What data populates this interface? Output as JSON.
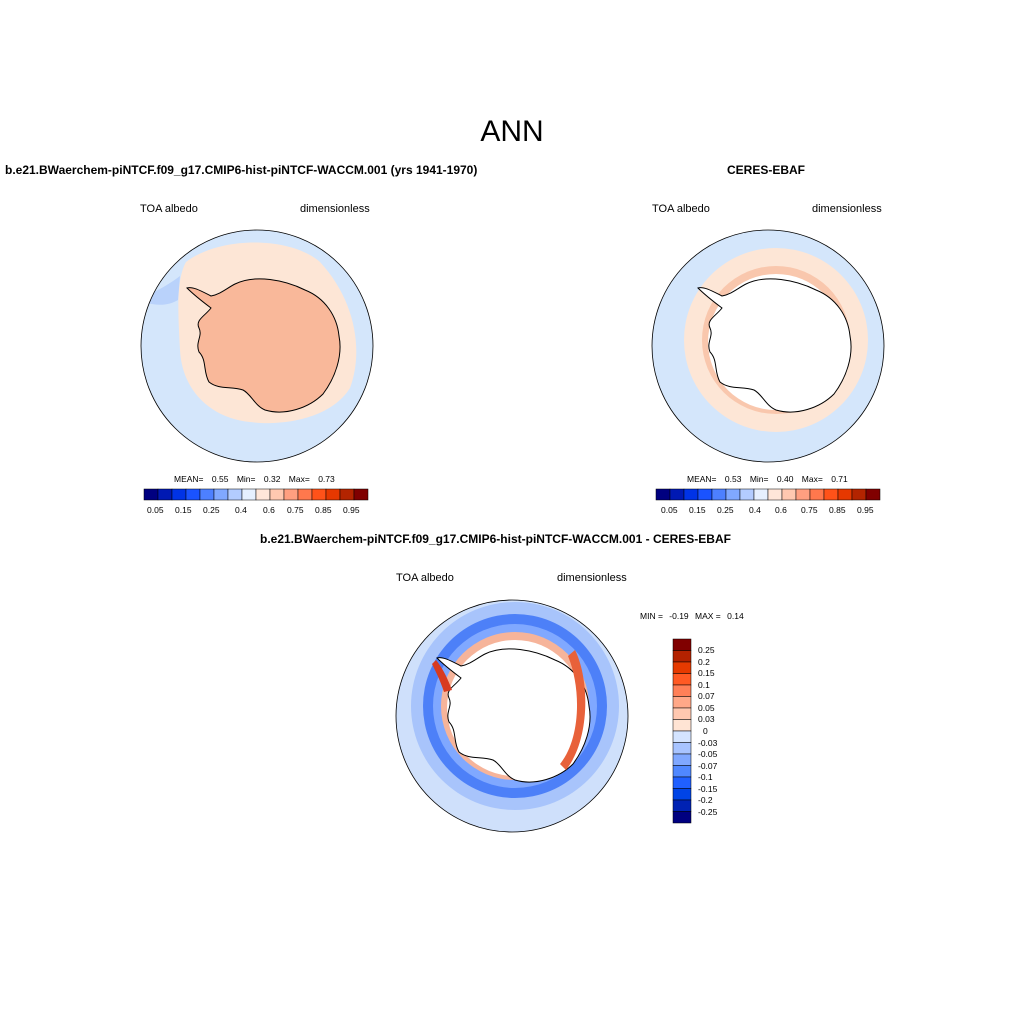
{
  "figure": {
    "title": "ANN"
  },
  "colors": {
    "seq": [
      "#000080",
      "#0019b3",
      "#0033e6",
      "#1a53ff",
      "#4d80ff",
      "#80a8ff",
      "#b3ccff",
      "#e6f0ff",
      "#ffe6d9",
      "#ffc8b0",
      "#ff9f80",
      "#ff784d",
      "#ff5219",
      "#e63800",
      "#b32400",
      "#800000"
    ],
    "diff": [
      "#000080",
      "#0022b3",
      "#0044e6",
      "#2060ff",
      "#5088ff",
      "#80a8ff",
      "#a8c4ff",
      "#d4e4ff",
      "#ffe4d4",
      "#ffc8b0",
      "#ffa888",
      "#ff8058",
      "#ff5a24",
      "#e63a00",
      "#b32200",
      "#800000"
    ]
  },
  "chart_data": [
    {
      "type": "heatmap",
      "id": "model",
      "title": "b.e21.BWaerchem-piNTCF.f09_g17.CMIP6-hist-piNTCF-WACCM.001 (yrs 1941-1970)",
      "variable": "TOA albedo",
      "units": "dimensionless",
      "projection": "south-polar-stereographic",
      "stats": {
        "mean_label": "MEAN=",
        "mean": "0.55",
        "min_label": "Min=",
        "min": "0.32",
        "max_label": "Max=",
        "max": "0.73"
      },
      "colorbar": {
        "orientation": "horizontal",
        "levels": [
          0.05,
          0.1,
          0.15,
          0.2,
          0.25,
          0.3,
          0.4,
          0.5,
          0.6,
          0.7,
          0.75,
          0.8,
          0.85,
          0.9,
          0.95
        ],
        "labels": [
          "0.05",
          "0.15",
          "0.25",
          "0.4",
          "0.6",
          "0.75",
          "0.85",
          "0.95"
        ]
      }
    },
    {
      "type": "heatmap",
      "id": "obs",
      "title": "CERES-EBAF",
      "variable": "TOA albedo",
      "units": "dimensionless",
      "projection": "south-polar-stereographic",
      "stats": {
        "mean_label": "MEAN=",
        "mean": "0.53",
        "min_label": "Min=",
        "min": "0.40",
        "max_label": "Max=",
        "max": "0.71"
      },
      "colorbar": {
        "orientation": "horizontal",
        "levels": [
          0.05,
          0.1,
          0.15,
          0.2,
          0.25,
          0.3,
          0.4,
          0.5,
          0.6,
          0.7,
          0.75,
          0.8,
          0.85,
          0.9,
          0.95
        ],
        "labels": [
          "0.05",
          "0.15",
          "0.25",
          "0.4",
          "0.6",
          "0.75",
          "0.85",
          "0.95"
        ]
      }
    },
    {
      "type": "heatmap",
      "id": "diff",
      "title": "b.e21.BWaerchem-piNTCF.f09_g17.CMIP6-hist-piNTCF-WACCM.001 - CERES-EBAF",
      "variable": "TOA albedo",
      "units": "dimensionless",
      "projection": "south-polar-stereographic",
      "stats": {
        "min_label": "MIN =",
        "min": "-0.19",
        "max_label": "MAX =",
        "max": "0.14"
      },
      "colorbar": {
        "orientation": "vertical",
        "levels": [
          0.25,
          0.2,
          0.15,
          0.1,
          0.07,
          0.05,
          0.03,
          0,
          -0.03,
          -0.05,
          -0.07,
          -0.1,
          -0.15,
          -0.2,
          -0.25
        ],
        "labels": [
          "0.25",
          "0.2",
          "0.15",
          "0.1",
          "0.07",
          "0.05",
          "0.03",
          "0",
          "-0.03",
          "-0.05",
          "-0.07",
          "-0.1",
          "-0.15",
          "-0.2",
          "-0.25"
        ]
      }
    }
  ]
}
